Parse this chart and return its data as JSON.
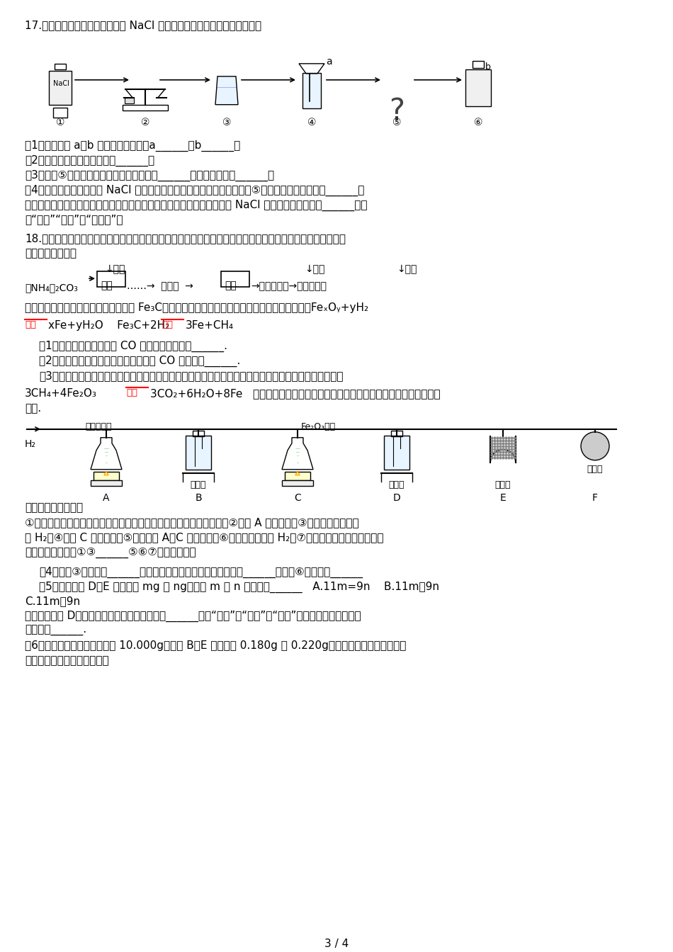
{
  "page": "3 / 4",
  "background": "#ffffff",
  "text_color": "#000000",
  "q17_title": "17.以下图是配制一定质量分数的 NaCl 溶液的操作过程，请答复以下问题：",
  "q17_labels": [
    "①",
    "②",
    "③",
    "④",
    "⑤",
    "⑥"
  ],
  "q17_q1": "、1、指出图中 a、b 两种仪器的名称：a______，b______。",
  "q17_q2": "、2、写出图中的一处错误操作______。",
  "q17_q3": "、3、步骤⑤的操作为溶解，玻璃棒的作用是______，其操作要领是______。",
  "q17_q4a": "、4、假设上面溶解得到的 NaCl 溶液中还含有少量不溶性物质，那么步骤⑤还需增加的操作名称是______；",
  "q17_q4b": "配制溶液时，量取水的时候仰视读数，假设其他操作都正确，那么配制的 NaCl 溶液的溶质质量分数______【填",
  "q17_q4c": "写“偏大”“偏小”或“无影响”】",
  "q18_title": "18.粗复原铁粉是一种重要的化工原料，某兴趣小组对其进行以下研究：【物质制备】利用绿矾制备精复原铁粉",
  "q18_title2": "的工艺流程如下：",
  "q18_para1": "粗复原铁粉中还含有少量铁的氧化物和 Fe₃C，可用氢气在高温下进一步复原，其反应方程式为：FeₓOᵧ+yH₂",
  "q18_eq1b": "xFe+yH₂O    Fe₃C+2H₂",
  "q18_eq2b": "3Fe+CH₄",
  "q18_q1": "、1、写出焙烧中氧化铁与 CO 反响的化学方程式______.",
  "q18_q2": "、2、焙烧中加焦炭的作用除了可以生成 CO 外，还能______.",
  "q18_q3a": "、3、【含量测定】为得到精复原铁粉并测定粗复原铁粉中氧和碳元素的质量分数，按如下装置进行试验，",
  "q18_rxn": "3CH₄+4Fe₂O₃",
  "q18_rxn_end": "3CO₂+6H₂O+8Fe   【假设每步反响都完全且不考虑装置内原来有空气对测定结果的影",
  "q18_resp": "响】.",
  "apparatus_labels": [
    "A",
    "B",
    "C",
    "D",
    "E",
    "F"
  ],
  "lbl_conc_acid": "浓硫酸",
  "lbl_alkali_lime": "碱石灰",
  "lbl_crude": "粗还原铁粉",
  "lbl_fe2o3": "Fe₂O₃固体",
  "lbl_h2": "H₂",
  "main_steps_title": "主要实验步骤如下：",
  "main_steps1": "①按顺序组装仪器，检查装置的气密性，称量样品和必要装置的质量；②点燃 A 处酒精灯；③缓缓通入纯洁枯燥",
  "main_steps2": "的 H₂；④点燃 C 处酒精灯；⑤分别熄灯 A、C 处酒精灯；⑥再缓缓通入少量 H₂；⑦再次称量必要装置的质量．",
  "main_steps3": "操作的先后顺序是①③______⑤⑥⑦【填序号】；",
  "q18_q4": "、4、步骤③的目的是______，验证该步骤目的到达的实验方法是______；步骤⑥的目的是______",
  "q18_q5a": "、5、假设装置 D、E 分别增重 mg 和 ng，那么 m 与 n 的关系为______   A.11m=9n    B.11m＜9n",
  "q18_q5b": "C.11m＞9n",
  "q18_q5c": "假设缺少装置 D，那么所测氧元素的质量分数将______【填“偏大”、“偏小”或“等于”．下同】．碳元素的质",
  "q18_q5d": "量分数将______.",
  "q18_q6": "、6、粗复原铁粉样品的质量为 10.000g，装置 B、E 分别增重 0.180g 和 0.220g．计算样品中氧和碳元素的",
  "q18_q6b": "质量分数【要求计算过程】．"
}
